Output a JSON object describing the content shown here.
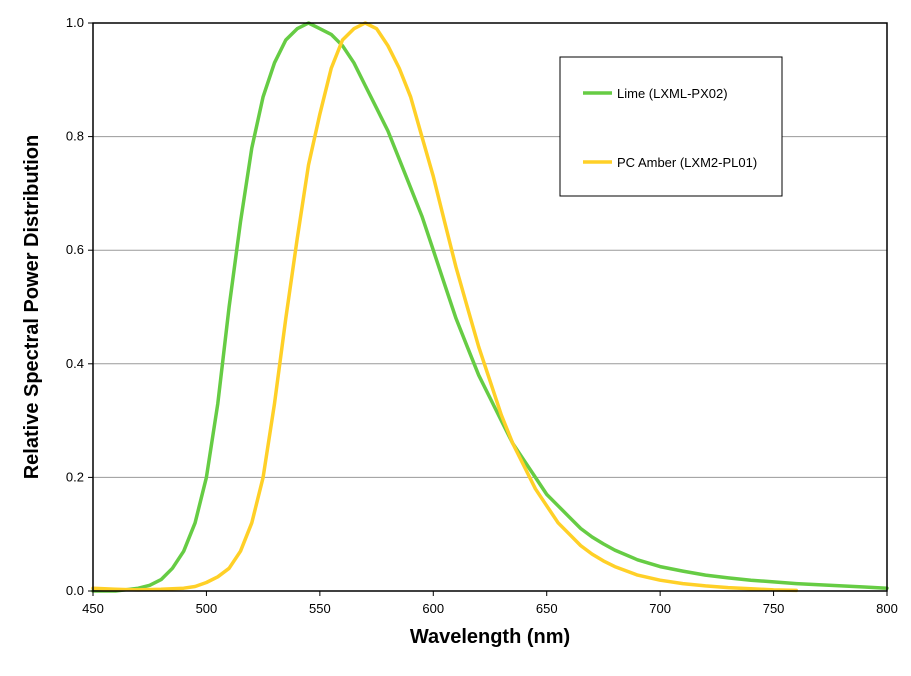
{
  "chart_data": {
    "type": "line",
    "title": "",
    "xlabel": "Wavelength (nm)",
    "ylabel": "Relative Spectral Power Distribution",
    "xlim": [
      450,
      800
    ],
    "ylim": [
      0,
      1.0
    ],
    "x_ticks": [
      450,
      500,
      550,
      600,
      650,
      700,
      750,
      800
    ],
    "x_tick_labels": [
      "450",
      "500",
      "550",
      "600",
      "650",
      "700",
      "750",
      "800"
    ],
    "y_ticks": [
      0,
      0.2,
      0.4,
      0.6,
      0.8,
      1.0
    ],
    "y_tick_labels": [
      "0.0",
      "0.2",
      "0.4",
      "0.6",
      "0.8",
      "1.0"
    ],
    "grid": "horizontal",
    "legend_position": "top-right",
    "series": [
      {
        "name": "Lime (LXML-PX02)",
        "color": "#66cc44",
        "x": [
          450,
          460,
          470,
          475,
          480,
          485,
          490,
          495,
          500,
          505,
          510,
          515,
          520,
          525,
          530,
          535,
          540,
          545,
          550,
          555,
          560,
          565,
          570,
          575,
          580,
          585,
          590,
          595,
          600,
          605,
          610,
          615,
          620,
          625,
          630,
          635,
          640,
          645,
          650,
          655,
          660,
          665,
          670,
          675,
          680,
          690,
          700,
          710,
          720,
          730,
          740,
          750,
          760,
          770,
          780,
          790,
          800
        ],
        "y": [
          0.0,
          0.0,
          0.005,
          0.01,
          0.02,
          0.04,
          0.07,
          0.12,
          0.2,
          0.33,
          0.5,
          0.65,
          0.78,
          0.87,
          0.93,
          0.97,
          0.99,
          1.0,
          0.99,
          0.98,
          0.96,
          0.93,
          0.89,
          0.85,
          0.81,
          0.76,
          0.71,
          0.66,
          0.6,
          0.54,
          0.48,
          0.43,
          0.38,
          0.34,
          0.3,
          0.26,
          0.23,
          0.2,
          0.17,
          0.15,
          0.13,
          0.11,
          0.095,
          0.083,
          0.072,
          0.055,
          0.043,
          0.035,
          0.028,
          0.023,
          0.019,
          0.016,
          0.013,
          0.011,
          0.009,
          0.007,
          0.005
        ]
      },
      {
        "name": "PC Amber (LXM2-PL01)",
        "color": "#ffd027",
        "x": [
          450,
          460,
          470,
          480,
          490,
          495,
          500,
          505,
          510,
          515,
          520,
          525,
          530,
          535,
          540,
          545,
          550,
          555,
          560,
          565,
          570,
          575,
          580,
          585,
          590,
          595,
          600,
          605,
          610,
          615,
          620,
          625,
          630,
          635,
          640,
          645,
          650,
          655,
          660,
          665,
          670,
          675,
          680,
          690,
          700,
          710,
          720,
          730,
          740,
          750,
          760
        ],
        "y": [
          0.005,
          0.003,
          0.002,
          0.003,
          0.005,
          0.008,
          0.015,
          0.025,
          0.04,
          0.07,
          0.12,
          0.2,
          0.33,
          0.48,
          0.62,
          0.75,
          0.84,
          0.92,
          0.97,
          0.99,
          1.0,
          0.99,
          0.96,
          0.92,
          0.87,
          0.8,
          0.73,
          0.65,
          0.57,
          0.5,
          0.43,
          0.37,
          0.31,
          0.26,
          0.22,
          0.18,
          0.15,
          0.12,
          0.1,
          0.08,
          0.065,
          0.053,
          0.043,
          0.028,
          0.019,
          0.013,
          0.009,
          0.006,
          0.004,
          0.002,
          0.001
        ]
      }
    ]
  }
}
